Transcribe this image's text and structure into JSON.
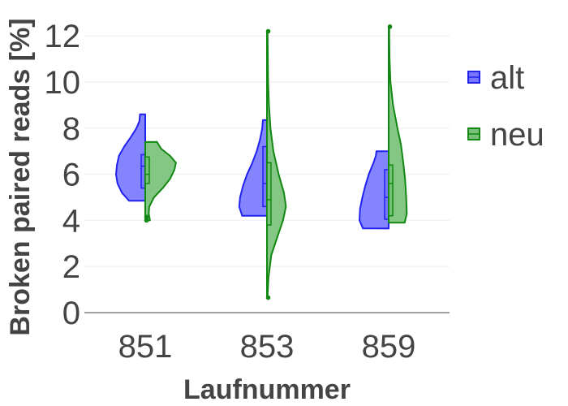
{
  "chart_data": {
    "type": "violin",
    "xlabel": "Laufnummer",
    "ylabel": "Broken paired reads [%]",
    "ylim": [
      0,
      12.5
    ],
    "yticks": [
      0,
      2,
      4,
      6,
      8,
      10,
      12
    ],
    "categories": [
      "851",
      "853",
      "859"
    ],
    "grid": true,
    "legend_position": "right",
    "series": [
      {
        "name": "alt",
        "color": "#2222ee",
        "fill": "#7777ff",
        "side": "negative",
        "violins": [
          {
            "category": "851",
            "min": 4.85,
            "max": 8.6,
            "q1": 5.4,
            "median": 6.35,
            "q3": 6.85,
            "density": [
              [
                4.85,
                0.55
              ],
              [
                5.2,
                0.8
              ],
              [
                5.6,
                0.95
              ],
              [
                6.0,
                1.0
              ],
              [
                6.4,
                0.97
              ],
              [
                6.8,
                0.9
              ],
              [
                7.2,
                0.72
              ],
              [
                7.6,
                0.5
              ],
              [
                8.0,
                0.3
              ],
              [
                8.3,
                0.2
              ],
              [
                8.6,
                0.18
              ]
            ],
            "outliers": []
          },
          {
            "category": "853",
            "min": 4.2,
            "max": 8.35,
            "q1": 4.6,
            "median": 5.6,
            "q3": 7.2,
            "density": [
              [
                4.2,
                0.85
              ],
              [
                4.6,
                0.95
              ],
              [
                5.0,
                0.92
              ],
              [
                5.5,
                0.82
              ],
              [
                6.0,
                0.68
              ],
              [
                6.5,
                0.5
              ],
              [
                7.0,
                0.35
              ],
              [
                7.5,
                0.24
              ],
              [
                8.0,
                0.16
              ],
              [
                8.35,
                0.14
              ]
            ],
            "outliers": []
          },
          {
            "category": "859",
            "min": 3.65,
            "max": 7.0,
            "q1": 4.05,
            "median": 5.0,
            "q3": 6.2,
            "density": [
              [
                3.65,
                0.88
              ],
              [
                4.0,
                1.0
              ],
              [
                4.5,
                0.98
              ],
              [
                5.0,
                0.9
              ],
              [
                5.5,
                0.8
              ],
              [
                6.0,
                0.68
              ],
              [
                6.5,
                0.52
              ],
              [
                6.8,
                0.44
              ],
              [
                7.0,
                0.42
              ]
            ],
            "outliers": []
          }
        ]
      },
      {
        "name": "neu",
        "color": "#118811",
        "fill": "#77c077",
        "side": "positive",
        "violins": [
          {
            "category": "851",
            "min": 4.0,
            "max": 7.4,
            "q1": 5.6,
            "median": 6.0,
            "q3": 6.75,
            "density": [
              [
                4.0,
                0.16
              ],
              [
                4.3,
                0.12
              ],
              [
                4.6,
                0.14
              ],
              [
                5.0,
                0.3
              ],
              [
                5.4,
                0.6
              ],
              [
                5.8,
                0.85
              ],
              [
                6.2,
                1.0
              ],
              [
                6.5,
                1.05
              ],
              [
                6.8,
                0.85
              ],
              [
                7.1,
                0.55
              ],
              [
                7.4,
                0.4
              ]
            ],
            "outliers": [
              4.0,
              4.15
            ]
          },
          {
            "category": "853",
            "min": 0.65,
            "max": 12.2,
            "q1": 3.8,
            "median": 4.9,
            "q3": 6.5,
            "density": [
              [
                0.65,
                0.02
              ],
              [
                1.5,
                0.05
              ],
              [
                2.5,
                0.15
              ],
              [
                3.3,
                0.36
              ],
              [
                4.0,
                0.55
              ],
              [
                4.6,
                0.65
              ],
              [
                5.2,
                0.58
              ],
              [
                6.0,
                0.4
              ],
              [
                7.0,
                0.22
              ],
              [
                8.0,
                0.12
              ],
              [
                9.0,
                0.07
              ],
              [
                10.0,
                0.04
              ],
              [
                11.0,
                0.03
              ],
              [
                12.2,
                0.02
              ]
            ],
            "outliers": [
              0.65,
              12.2
            ]
          },
          {
            "category": "859",
            "min": 3.9,
            "max": 12.4,
            "q1": 4.2,
            "median": 5.6,
            "q3": 6.4,
            "density": [
              [
                3.9,
                0.55
              ],
              [
                4.3,
                0.62
              ],
              [
                5.0,
                0.6
              ],
              [
                5.8,
                0.56
              ],
              [
                6.5,
                0.5
              ],
              [
                7.3,
                0.42
              ],
              [
                8.0,
                0.3
              ],
              [
                9.0,
                0.15
              ],
              [
                10.0,
                0.06
              ],
              [
                11.0,
                0.03
              ],
              [
                12.0,
                0.02
              ],
              [
                12.4,
                0.02
              ]
            ],
            "outliers": [
              12.4
            ]
          }
        ]
      }
    ]
  }
}
